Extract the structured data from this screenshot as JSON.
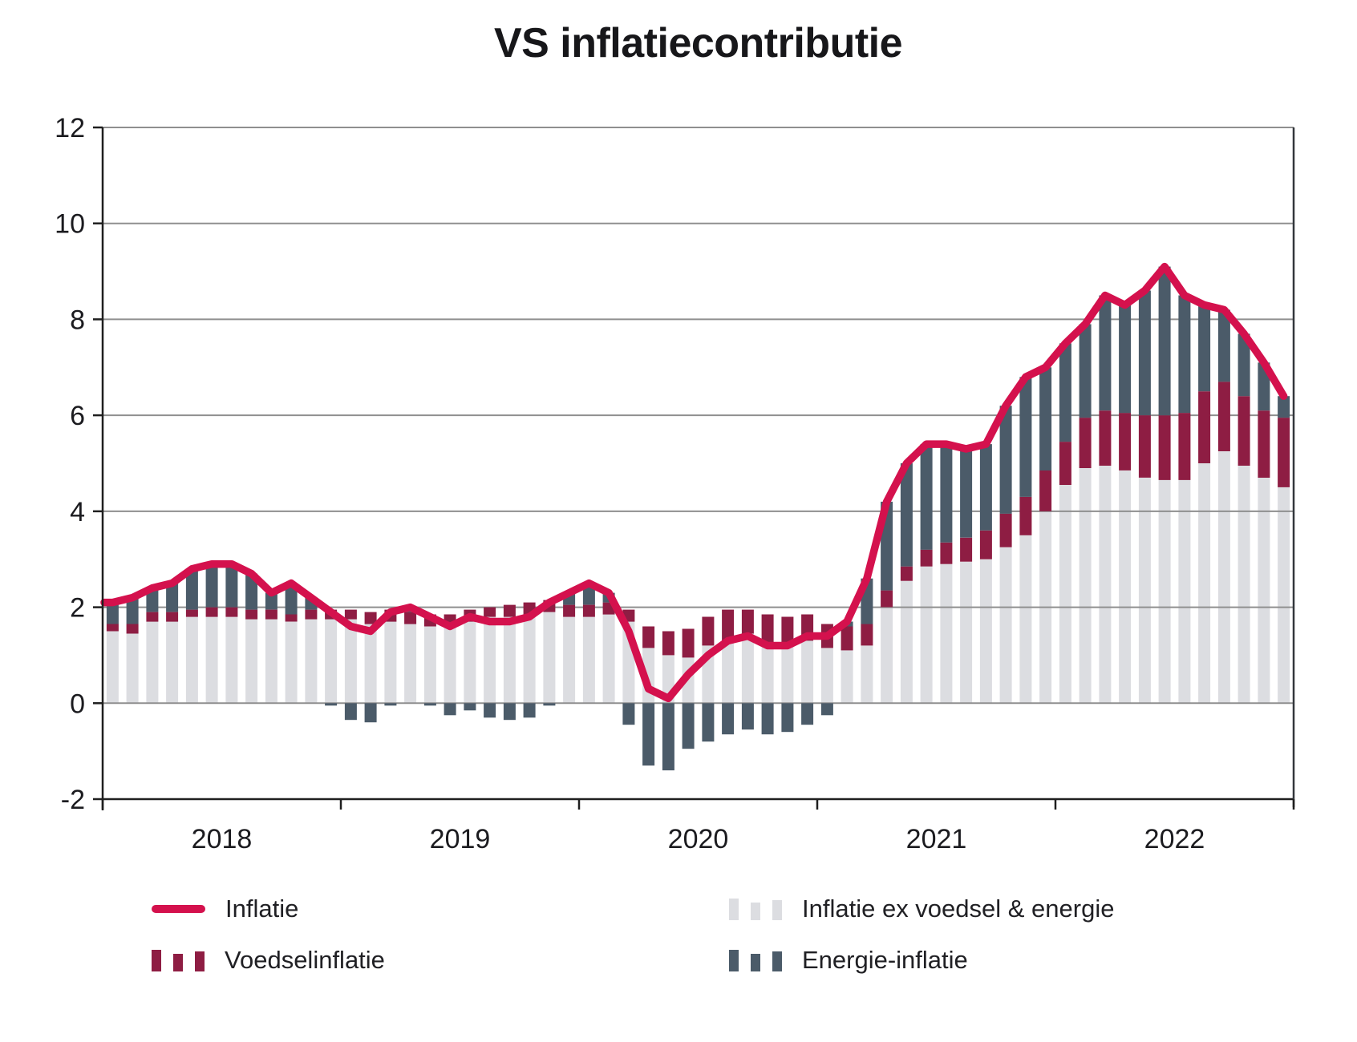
{
  "title": "VS inflatiecontributie",
  "legend": {
    "inflatie_label": "Inflatie",
    "core_label": "Inflatie ex voedsel & energie",
    "voedsel_label": "Voedselinflatie",
    "energie_label": "Energie-inflatie"
  },
  "colors": {
    "line": "#d4114d",
    "food": "#8e1d43",
    "energy": "#4b5b69",
    "core": "#dcdde1",
    "grid": "#8f8f8f",
    "axis": "#1f1f1f",
    "axis_right": "#33373c",
    "text": "#1b1b1f"
  },
  "chart_data": {
    "type": "bar",
    "subtype": "stacked-bars-with-line",
    "title": "VS inflatiecontributie",
    "xlabel": "",
    "ylabel": "",
    "ylim": [
      -2,
      12
    ],
    "grid": "horizontal",
    "legend_position": "bottom",
    "yticks": [
      12,
      10,
      8,
      6,
      4,
      2,
      0,
      -2
    ],
    "y_tick_labels": [
      "12",
      "10",
      "8",
      "6",
      "4",
      "2",
      "0",
      "-2"
    ],
    "x_year_labels": [
      "2018",
      "2019",
      "2020",
      "2021",
      "2022"
    ],
    "months": [
      "2018-01",
      "2018-02",
      "2018-03",
      "2018-04",
      "2018-05",
      "2018-06",
      "2018-07",
      "2018-08",
      "2018-09",
      "2018-10",
      "2018-11",
      "2018-12",
      "2019-01",
      "2019-02",
      "2019-03",
      "2019-04",
      "2019-05",
      "2019-06",
      "2019-07",
      "2019-08",
      "2019-09",
      "2019-10",
      "2019-11",
      "2019-12",
      "2020-01",
      "2020-02",
      "2020-03",
      "2020-04",
      "2020-05",
      "2020-06",
      "2020-07",
      "2020-08",
      "2020-09",
      "2020-10",
      "2020-11",
      "2020-12",
      "2021-01",
      "2021-02",
      "2021-03",
      "2021-04",
      "2021-05",
      "2021-06",
      "2021-07",
      "2021-08",
      "2021-09",
      "2021-10",
      "2021-11",
      "2021-12",
      "2022-01",
      "2022-02",
      "2022-03",
      "2022-04",
      "2022-05",
      "2022-06",
      "2022-07",
      "2022-08",
      "2022-09",
      "2022-10",
      "2022-11",
      "2022-12"
    ],
    "series": [
      {
        "name": "Inflatie ex voedsel & energie",
        "role": "core",
        "values": [
          1.5,
          1.45,
          1.7,
          1.7,
          1.8,
          1.8,
          1.8,
          1.75,
          1.75,
          1.7,
          1.75,
          1.75,
          1.75,
          1.65,
          1.7,
          1.65,
          1.6,
          1.6,
          1.7,
          1.8,
          1.8,
          1.85,
          1.9,
          1.8,
          1.8,
          1.85,
          1.7,
          1.15,
          1.0,
          0.95,
          1.2,
          1.3,
          1.45,
          1.25,
          1.2,
          1.3,
          1.15,
          1.1,
          1.2,
          2.0,
          2.55,
          2.85,
          2.9,
          2.95,
          3.0,
          3.25,
          3.5,
          4.0,
          4.55,
          4.9,
          4.95,
          4.85,
          4.7,
          4.65,
          4.65,
          5.0,
          5.25,
          4.95,
          4.7,
          4.5
        ]
      },
      {
        "name": "Voedselinflatie",
        "role": "food",
        "values": [
          0.15,
          0.2,
          0.2,
          0.2,
          0.15,
          0.2,
          0.2,
          0.2,
          0.2,
          0.15,
          0.2,
          0.2,
          0.2,
          0.25,
          0.25,
          0.25,
          0.25,
          0.25,
          0.25,
          0.2,
          0.25,
          0.25,
          0.25,
          0.25,
          0.25,
          0.25,
          0.25,
          0.45,
          0.5,
          0.6,
          0.6,
          0.65,
          0.5,
          0.6,
          0.6,
          0.55,
          0.5,
          0.5,
          0.45,
          0.35,
          0.3,
          0.35,
          0.45,
          0.5,
          0.6,
          0.7,
          0.8,
          0.85,
          0.9,
          1.05,
          1.15,
          1.2,
          1.3,
          1.35,
          1.4,
          1.5,
          1.45,
          1.45,
          1.4,
          1.45
        ]
      },
      {
        "name": "Energie-inflatie",
        "role": "energy",
        "values": [
          0.45,
          0.55,
          0.5,
          0.6,
          0.85,
          0.9,
          0.9,
          0.75,
          0.35,
          0.65,
          0.25,
          -0.05,
          -0.35,
          -0.4,
          -0.05,
          0.1,
          -0.05,
          -0.25,
          -0.15,
          -0.3,
          -0.35,
          -0.3,
          -0.05,
          0.25,
          0.45,
          0.2,
          -0.45,
          -1.3,
          -1.4,
          -0.95,
          -0.8,
          -0.65,
          -0.55,
          -0.65,
          -0.6,
          -0.45,
          -0.25,
          0.1,
          0.95,
          1.85,
          2.15,
          2.2,
          2.05,
          1.85,
          1.8,
          2.25,
          2.5,
          2.15,
          2.05,
          1.95,
          2.4,
          2.25,
          2.6,
          3.1,
          2.45,
          1.8,
          1.5,
          1.3,
          1.0,
          0.45
        ]
      }
    ],
    "line": {
      "name": "Inflatie",
      "values": [
        2.1,
        2.2,
        2.4,
        2.5,
        2.8,
        2.9,
        2.9,
        2.7,
        2.3,
        2.5,
        2.2,
        1.9,
        1.6,
        1.5,
        1.9,
        2.0,
        1.8,
        1.6,
        1.8,
        1.7,
        1.7,
        1.8,
        2.1,
        2.3,
        2.5,
        2.3,
        1.5,
        0.3,
        0.1,
        0.6,
        1.0,
        1.3,
        1.4,
        1.2,
        1.2,
        1.4,
        1.4,
        1.7,
        2.6,
        4.2,
        5.0,
        5.4,
        5.4,
        5.3,
        5.4,
        6.2,
        6.8,
        7.0,
        7.5,
        7.9,
        8.5,
        8.3,
        8.6,
        9.1,
        8.5,
        8.3,
        8.2,
        7.7,
        7.1,
        6.4
      ]
    }
  }
}
